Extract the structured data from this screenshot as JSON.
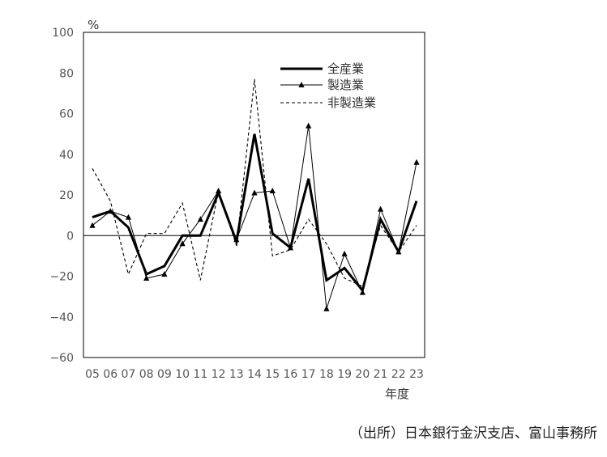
{
  "chart_data": {
    "type": "line",
    "ylabel": "%",
    "xlabel": "年度",
    "ylim": [
      -60,
      100
    ],
    "yticks": [
      100,
      80,
      60,
      40,
      20,
      0,
      -20,
      -40,
      -60
    ],
    "yticklabels": [
      "100",
      "80",
      "60",
      "40",
      "20",
      "0",
      "−20",
      "−40",
      "−60"
    ],
    "categories": [
      "05",
      "06",
      "07",
      "08",
      "09",
      "10",
      "11",
      "12",
      "13",
      "14",
      "15",
      "16",
      "17",
      "18",
      "19",
      "20",
      "21",
      "22",
      "23"
    ],
    "grid": false,
    "legend_position": "top-right",
    "series": [
      {
        "name": "全産業",
        "style": "thick-solid",
        "color": "#000000",
        "values": [
          9,
          12,
          4,
          -19,
          -15,
          0,
          0,
          21,
          -3,
          50,
          1,
          -6,
          28,
          -22,
          -16,
          -27,
          8,
          -8,
          17
        ]
      },
      {
        "name": "製造業",
        "style": "thin-solid-triangle",
        "color": "#000000",
        "values": [
          5,
          12,
          9,
          -21,
          -19,
          -4,
          8,
          22,
          -2,
          21,
          22,
          -6,
          54,
          -36,
          -9,
          -28,
          13,
          -8,
          36
        ]
      },
      {
        "name": "非製造業",
        "style": "dashed",
        "color": "#000000",
        "values": [
          33,
          17,
          -19,
          1,
          1,
          16,
          -22,
          22,
          -5,
          77,
          -10,
          -7,
          8,
          -4,
          -21,
          -25,
          5,
          -8,
          5
        ]
      }
    ]
  },
  "source_note": "（出所）日本銀行金沢支店、富山事務所"
}
